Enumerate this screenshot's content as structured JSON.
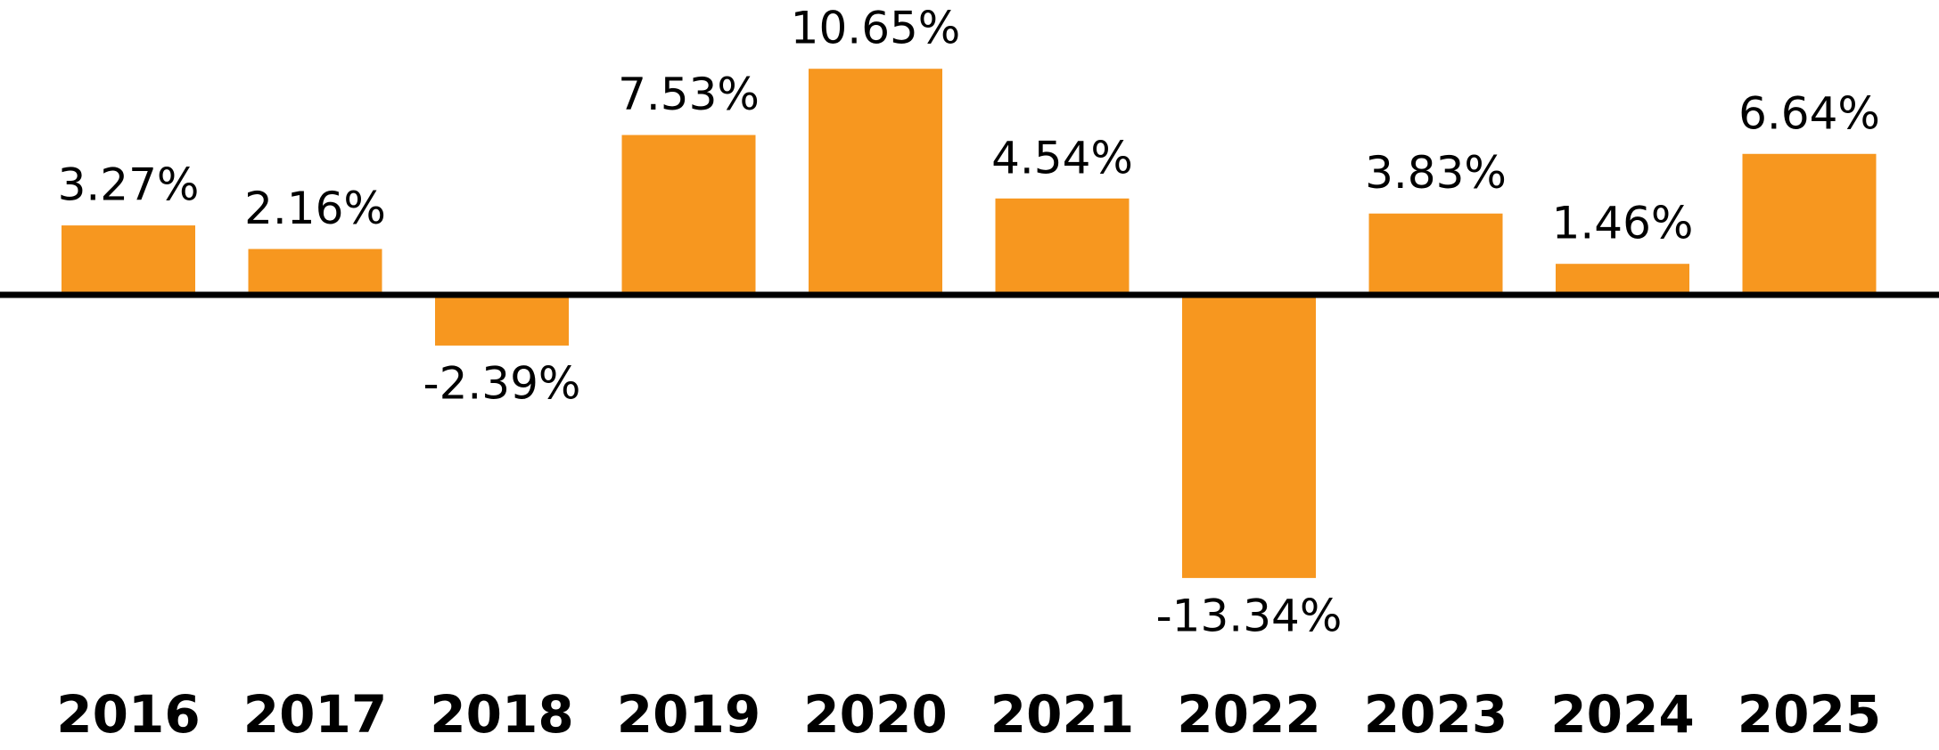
{
  "chart_data": {
    "type": "bar",
    "categories": [
      "2016",
      "2017",
      "2018",
      "2019",
      "2020",
      "2021",
      "2022",
      "2023",
      "2024",
      "2025"
    ],
    "values": [
      3.27,
      2.16,
      -2.39,
      7.53,
      10.65,
      4.54,
      -13.34,
      3.83,
      1.46,
      6.64
    ],
    "value_labels": [
      "3.27%",
      "2.16%",
      "-2.39%",
      "7.53%",
      "10.65%",
      "4.54%",
      "-13.34%",
      "3.83%",
      "1.46%",
      "6.64%"
    ],
    "color": "#f7971f"
  }
}
